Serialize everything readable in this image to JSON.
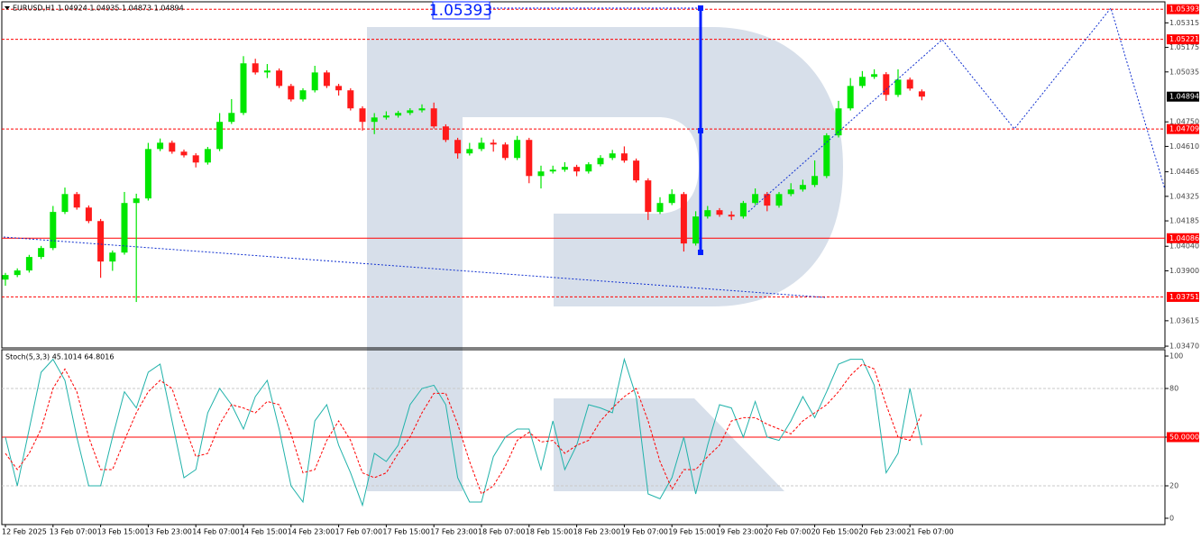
{
  "chart_data": [
    {
      "type": "candlestick",
      "title": "EURUSD,H1 1.04924 1.04935 1.04873 1.04894",
      "categories": [
        "12 Feb 2025",
        null,
        null,
        null,
        "13 Feb 07:00",
        null,
        null,
        null,
        "13 Feb 15:00",
        null,
        null,
        null,
        "13 Feb 23:00",
        null,
        null,
        null,
        "14 Feb 07:00",
        null,
        null,
        null,
        "14 Feb 15:00",
        null,
        null,
        null,
        "14 Feb 23:00",
        null,
        null,
        null,
        "17 Feb 07:00",
        null,
        null,
        null,
        "17 Feb 15:00",
        null,
        null,
        null,
        "17 Feb 23:00",
        null,
        null,
        null,
        "18 Feb 07:00",
        null,
        null,
        null,
        "18 Feb 15:00",
        null,
        null,
        null,
        "18 Feb 23:00",
        null,
        null,
        null,
        "19 Feb 07:00",
        null,
        null,
        null,
        "19 Feb 15:00",
        null,
        null,
        null,
        "19 Feb 23:00",
        null,
        null,
        null,
        "20 Feb 07:00",
        null,
        null,
        null,
        "20 Feb 15:00",
        null,
        null,
        null,
        "20 Feb 23:00",
        null,
        null,
        null,
        "21 Feb 07:00",
        null
      ],
      "open": [
        1.0385,
        1.03876,
        1.03902,
        1.03979,
        1.0403,
        1.04236,
        1.04338,
        1.04261,
        1.04184,
        1.03953,
        1.04004,
        1.04287,
        1.04313,
        1.04595,
        1.04631,
        1.0458,
        1.04559,
        1.04518,
        1.04595,
        1.0475,
        1.04801,
        1.05084,
        1.05032,
        1.05043,
        1.04955,
        1.04878,
        1.0493,
        1.05032,
        1.04955,
        1.0493,
        1.04827,
        1.0475,
        1.04775,
        1.04786,
        1.04801,
        1.04816,
        1.04827,
        1.04724,
        1.04647,
        1.0457,
        1.04595,
        1.04631,
        1.04621,
        1.04544,
        1.04647,
        1.04441,
        1.04467,
        1.04477,
        1.04493,
        1.04467,
        1.04508,
        1.04544,
        1.0457,
        1.04529,
        1.04416,
        1.04236,
        1.04287,
        1.04338,
        1.04056,
        1.0421,
        1.04246,
        1.0422,
        1.0421,
        1.04287,
        1.04338,
        1.04272,
        1.04338,
        1.04364,
        1.0439,
        1.04441,
        1.04673,
        1.04827,
        1.04955,
        1.05007,
        1.05022,
        1.04904,
        1.04991,
        1.04924
      ],
      "high": [
        1.03888,
        1.03914,
        1.03991,
        1.04042,
        1.0427,
        1.04375,
        1.0435,
        1.04273,
        1.04196,
        1.04016,
        1.0435,
        1.0434,
        1.0463,
        1.04655,
        1.04643,
        1.04592,
        1.04571,
        1.04607,
        1.048,
        1.0488,
        1.05125,
        1.0511,
        1.0508,
        1.05055,
        1.04967,
        1.04942,
        1.0507,
        1.05044,
        1.04967,
        1.04942,
        1.04839,
        1.048,
        1.0481,
        1.04813,
        1.04828,
        1.0485,
        1.0486,
        1.04736,
        1.04659,
        1.0463,
        1.0466,
        1.0465,
        1.04633,
        1.0467,
        1.04659,
        1.045,
        1.045,
        1.0452,
        1.04505,
        1.0452,
        1.0456,
        1.0459,
        1.0461,
        1.04541,
        1.04428,
        1.0432,
        1.04365,
        1.0435,
        1.0424,
        1.0427,
        1.04258,
        1.0424,
        1.04299,
        1.0437,
        1.0435,
        1.0435,
        1.044,
        1.0442,
        1.0453,
        1.04685,
        1.0487,
        1.05,
        1.0504,
        1.0505,
        1.05034,
        1.0505,
        1.05003,
        1.04935
      ],
      "low": [
        1.03815,
        1.03864,
        1.0389,
        1.03967,
        1.04018,
        1.04224,
        1.04249,
        1.04172,
        1.0386,
        1.039,
        1.03992,
        1.03722,
        1.04301,
        1.04583,
        1.04568,
        1.04547,
        1.0449,
        1.04506,
        1.04583,
        1.04738,
        1.04789,
        1.0502,
        1.05,
        1.04943,
        1.04866,
        1.04866,
        1.04918,
        1.04943,
        1.049,
        1.04815,
        1.047,
        1.0468,
        1.04763,
        1.04774,
        1.04789,
        1.04804,
        1.04712,
        1.04635,
        1.0454,
        1.04558,
        1.04583,
        1.0458,
        1.04532,
        1.04532,
        1.044,
        1.0437,
        1.04455,
        1.04465,
        1.0444,
        1.04455,
        1.04496,
        1.04532,
        1.04517,
        1.04404,
        1.0419,
        1.04224,
        1.04275,
        1.0401,
        1.04044,
        1.04198,
        1.04208,
        1.0419,
        1.04198,
        1.04275,
        1.0424,
        1.0426,
        1.04326,
        1.04352,
        1.04378,
        1.04429,
        1.04661,
        1.04815,
        1.04943,
        1.04995,
        1.0487,
        1.04892,
        1.04928,
        1.04873
      ],
      "close": [
        1.03876,
        1.03902,
        1.03979,
        1.0403,
        1.04236,
        1.04338,
        1.04261,
        1.04184,
        1.03953,
        1.04004,
        1.04287,
        1.04313,
        1.04595,
        1.04631,
        1.0458,
        1.04559,
        1.04518,
        1.04595,
        1.0475,
        1.04801,
        1.05084,
        1.05032,
        1.05043,
        1.04955,
        1.04878,
        1.0493,
        1.05032,
        1.04955,
        1.0493,
        1.04827,
        1.0475,
        1.04775,
        1.04786,
        1.04801,
        1.04816,
        1.04827,
        1.04724,
        1.04647,
        1.0457,
        1.04595,
        1.04631,
        1.04621,
        1.04544,
        1.04647,
        1.04441,
        1.04467,
        1.04477,
        1.04493,
        1.04467,
        1.04508,
        1.04544,
        1.0457,
        1.04529,
        1.04416,
        1.04236,
        1.04287,
        1.04338,
        1.04056,
        1.0421,
        1.04246,
        1.0422,
        1.0421,
        1.04287,
        1.04338,
        1.04272,
        1.04338,
        1.04364,
        1.0439,
        1.04441,
        1.04673,
        1.04827,
        1.04955,
        1.05007,
        1.05022,
        1.04904,
        1.04991,
        1.0494,
        1.04894
      ],
      "up_color": "#00e600",
      "down_color": "#ff1a1a",
      "ylim": [
        1.0346,
        1.0543
      ],
      "yticks": [
        1.05315,
        1.05175,
        1.05035,
        {
          "value": 1.0475,
          "label": "1.04750"
        },
        {
          "value": 1.0461,
          "label": "1.04610"
        },
        1.04465,
        1.04325,
        1.04185,
        {
          "value": 1.0404,
          "label": "1.04040"
        },
        {
          "value": 1.039,
          "label": "1.03900"
        },
        1.03615,
        {
          "value": 1.0347,
          "label": "1.03470"
        }
      ],
      "levels": [
        1.05393,
        1.05221,
        1.04709,
        1.04086,
        1.03751
      ],
      "level_styles": [
        "dashed",
        "dashed",
        "dashed",
        "solid",
        "dashed"
      ],
      "level_color": "#ff0000",
      "last_price": 1.04894,
      "marker_label": "1.05393"
    },
    {
      "type": "line",
      "title": "Stoch(5,3,3) 45.1014 64.8016",
      "ylim": [
        -3.9,
        103.9
      ],
      "yticks": [
        0,
        20,
        {
          "value": 50,
          "label": "50.0000"
        },
        80,
        100
      ],
      "levels": [
        20,
        50,
        80
      ],
      "level_colors": [
        "#c8c8c8",
        "#ff0000",
        "#c8c8c8"
      ],
      "series": [
        {
          "color": "#20b2aa",
          "dashed": false,
          "values": [
            50,
            20,
            55,
            90,
            98,
            85,
            50,
            20,
            20,
            50,
            78,
            68,
            90,
            95,
            60,
            25,
            30,
            65,
            80,
            70,
            55,
            75,
            85,
            55,
            20,
            10,
            60,
            70,
            45,
            28,
            8,
            40,
            35,
            45,
            70,
            80,
            82,
            70,
            25,
            10,
            10,
            38,
            50,
            55,
            55,
            30,
            60,
            30,
            45,
            70,
            68,
            65,
            98,
            75,
            15,
            12,
            25,
            50,
            15,
            45,
            70,
            68,
            50,
            72,
            50,
            48,
            60,
            75,
            62,
            78,
            95,
            98,
            98,
            82,
            28,
            40,
            80,
            45.1014
          ]
        },
        {
          "color": "#ff0000",
          "dashed": true,
          "values": [
            40,
            30,
            40,
            55,
            80,
            92,
            78,
            50,
            30,
            30,
            48,
            65,
            78,
            85,
            80,
            58,
            38,
            40,
            58,
            70,
            68,
            65,
            72,
            70,
            52,
            28,
            30,
            48,
            60,
            48,
            28,
            25,
            28,
            40,
            50,
            65,
            77,
            77,
            58,
            35,
            15,
            20,
            32,
            48,
            53,
            47,
            48,
            40,
            45,
            48,
            60,
            68,
            75,
            80,
            60,
            35,
            18,
            30,
            30,
            38,
            45,
            60,
            62,
            62,
            58,
            55,
            52,
            60,
            65,
            70,
            78,
            88,
            95,
            92,
            70,
            50,
            48,
            64.8016
          ]
        }
      ]
    }
  ]
}
